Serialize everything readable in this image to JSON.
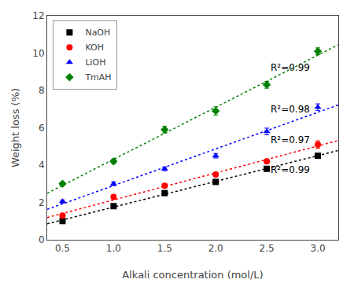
{
  "chart_data": {
    "type": "scatter",
    "xlabel": "Alkali concentration (mol/L)",
    "ylabel": "Weight loss (%)",
    "x": [
      0.5,
      1.0,
      1.5,
      2.0,
      2.5,
      3.0
    ],
    "series": [
      {
        "name": "NaOH",
        "color": "#000000",
        "marker": "square",
        "line_style": "dotted",
        "values": [
          1.0,
          1.8,
          2.5,
          3.1,
          3.8,
          4.5
        ],
        "errors": [
          0.08,
          0.1,
          0.1,
          0.1,
          0.1,
          0.1
        ],
        "trend_values": [
          0.855333,
          4.78019
        ]
      },
      {
        "name": "KOH",
        "color": "#ff0000",
        "marker": "circle",
        "line_style": "dotted",
        "values": [
          1.3,
          2.3,
          2.9,
          3.5,
          4.2,
          5.1
        ],
        "errors": [
          0.08,
          0.1,
          0.1,
          0.1,
          0.12,
          0.2
        ],
        "trend_values": [
          1.192667,
          5.312952
        ]
      },
      {
        "name": "LiOH",
        "color": "#0000ff",
        "marker": "triangle-up",
        "line_style": "dotted",
        "values": [
          2.05,
          3.0,
          3.8,
          4.5,
          5.8,
          7.1
        ],
        "errors": [
          0.08,
          0.1,
          0.1,
          0.12,
          0.18,
          0.18
        ],
        "trend_values": [
          1.627,
          7.221143
        ]
      },
      {
        "name": "TmAH",
        "color": "#008000",
        "marker": "diamond",
        "line_style": "dotted",
        "values": [
          3.0,
          4.2,
          5.9,
          6.9,
          8.3,
          10.1
        ],
        "errors": [
          0.1,
          0.12,
          0.18,
          0.22,
          0.18,
          0.18
        ],
        "trend_values": [
          2.496,
          10.443429
        ]
      }
    ],
    "annotations": [
      {
        "text": "R²=0.99",
        "x": 2.52,
        "y": 3.35
      },
      {
        "text": "R²=0.97",
        "x": 2.52,
        "y": 4.95
      },
      {
        "text": "R²=0.98",
        "x": 2.52,
        "y": 6.6
      },
      {
        "text": "R²=0.99",
        "x": 2.52,
        "y": 8.85
      }
    ],
    "xlim": [
      0.35,
      3.2
    ],
    "ylim": [
      0,
      12
    ],
    "xticks": [
      0.5,
      {
        "value": 1.0,
        "label": "1.0"
      },
      1.5,
      {
        "value": 2.0,
        "label": "2.0"
      },
      2.5,
      {
        "value": 3.0,
        "label": "3.0"
      }
    ],
    "yticks": [
      0,
      2,
      4,
      6,
      8,
      10,
      12
    ],
    "grid": false,
    "legend": "upper left"
  }
}
